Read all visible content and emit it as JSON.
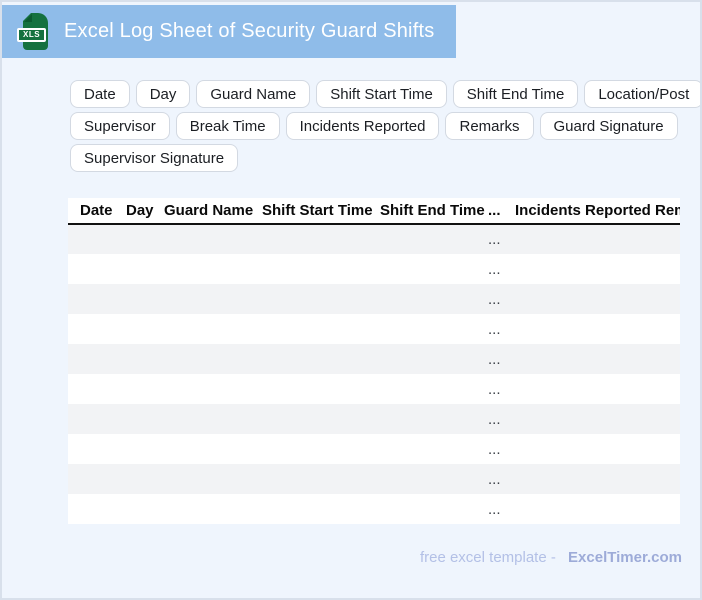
{
  "header": {
    "title": "Excel Log Sheet of Security Guard Shifts",
    "file_icon": "xls-file-icon",
    "file_icon_label": "XLS"
  },
  "chips": {
    "rows": [
      [
        "Date",
        "Day",
        "Guard Name",
        "Shift Start Time",
        "Shift End Time",
        "Location/Post"
      ],
      [
        "Supervisor",
        "Break Time",
        "Incidents Reported",
        "Remarks",
        "Guard Signature"
      ],
      [
        "Supervisor Signature"
      ]
    ]
  },
  "table": {
    "columns": [
      "Date",
      "Day",
      "Guard Name",
      "Shift Start Time",
      "Shift End Time",
      "...",
      "Incidents Reported",
      "Remarks"
    ],
    "row_count": 10,
    "placeholder": "...",
    "placeholder_col": 5
  },
  "footer": {
    "tagline": "free excel template -",
    "brand": "ExcelTimer.com"
  },
  "colors": {
    "page_bg": "#eff5fd",
    "banner": "#8fbce9",
    "stripe": "#f2f3f5",
    "header_rule": "#111111",
    "footer_text": "#b3c0e6",
    "footer_brand": "#9dabd8",
    "icon_green": "#15713f"
  }
}
